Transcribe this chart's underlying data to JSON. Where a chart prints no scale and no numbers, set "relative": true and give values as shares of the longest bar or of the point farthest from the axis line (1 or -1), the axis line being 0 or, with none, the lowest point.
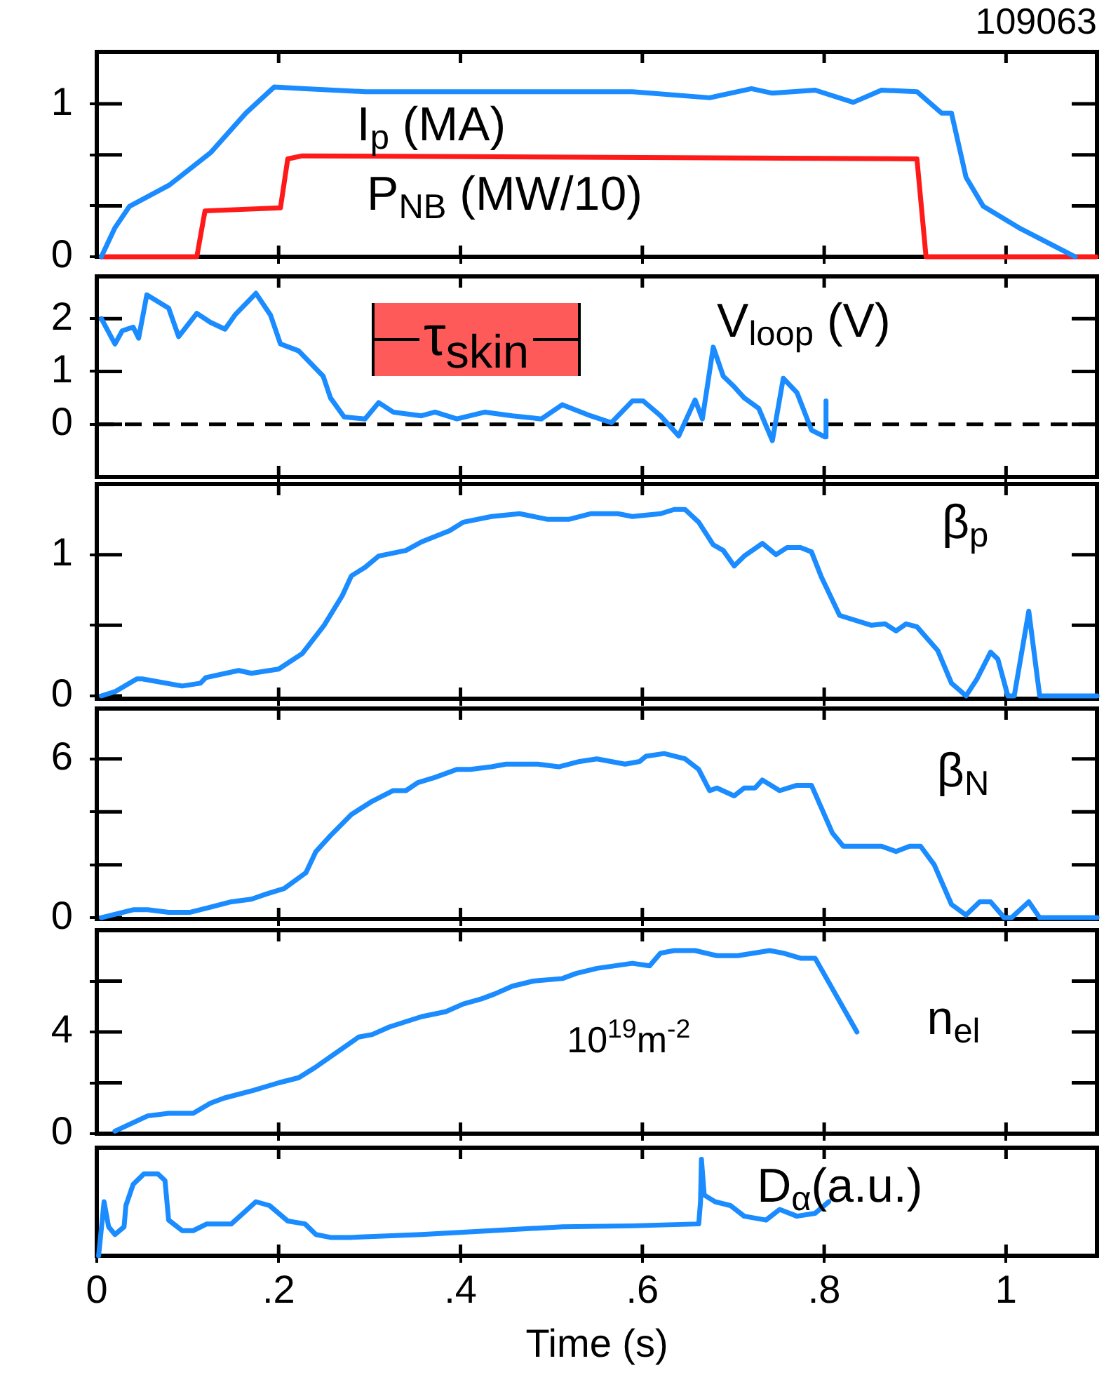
{
  "chart_data": [
    {
      "type": "line",
      "annotations": [
        "109063"
      ],
      "xlim": [
        0,
        1.1
      ],
      "xticks": [
        {
          "value": 0.2,
          "label": null
        },
        {
          "value": 0.4,
          "label": null
        },
        {
          "value": 0.6,
          "label": null
        },
        {
          "value": 0.8,
          "label": null
        },
        {
          "value": 1,
          "label": null
        }
      ],
      "ylim": [
        0,
        1.34
      ],
      "yticks": [
        0,
        {
          "value": 0.333,
          "label": null
        },
        {
          "value": 0.667,
          "label": null
        },
        1
      ],
      "tick_labels": "y",
      "marker": "none",
      "line_style": "solid",
      "series": [
        {
          "name": "I$_{p}$ (MA)",
          "color": "#1a8cff",
          "x": [
            0.005,
            0.02,
            0.036,
            0.08,
            0.125,
            0.164,
            0.195,
            0.226,
            0.295,
            0.589,
            0.674,
            0.72,
            0.743,
            0.79,
            0.832,
            0.863,
            0.902,
            0.929,
            0.94,
            0.956,
            0.975,
            1.014,
            1.076
          ],
          "values": [
            0,
            0.19,
            0.33,
            0.47,
            0.68,
            0.94,
            1.11,
            1.1,
            1.08,
            1.08,
            1.04,
            1.1,
            1.07,
            1.09,
            1.01,
            1.09,
            1.08,
            0.94,
            0.94,
            0.52,
            0.33,
            0.19,
            0
          ]
        },
        {
          "name": "P$_{NB}$ (MW/10)",
          "color": "#ff1a1a",
          "x": [
            0.005,
            0.11,
            0.119,
            0.202,
            0.21,
            0.226,
            0.902,
            0.912,
            1.099
          ],
          "values": [
            0,
            0,
            0.3,
            0.32,
            0.64,
            0.66,
            0.64,
            0,
            0
          ]
        }
      ]
    },
    {
      "type": "line",
      "annotations": [
        "τ$_{skin}$"
      ],
      "xlim": [
        0,
        1.1
      ],
      "xticks": [
        {
          "value": 0.2,
          "label": null
        },
        {
          "value": 0.4,
          "label": null
        },
        {
          "value": 0.6,
          "label": null
        },
        {
          "value": 0.8,
          "label": null
        },
        {
          "value": 1,
          "label": null
        }
      ],
      "ylim": [
        -1,
        2.8
      ],
      "yticks": [
        0,
        1,
        2
      ],
      "tick_labels": "y",
      "marker": "none",
      "line_style": "solid",
      "ref_lines": [
        {
          "axis": "y",
          "value": 0,
          "color": "#000000",
          "line_style": "dashed"
        }
      ],
      "series": [
        {
          "name": "V$_{loop}$ (V)",
          "color": "#1a8cff",
          "x": [
            0.005,
            0.02,
            0.028,
            0.04,
            0.046,
            0.055,
            0.079,
            0.09,
            0.11,
            0.125,
            0.141,
            0.152,
            0.175,
            0.191,
            0.202,
            0.222,
            0.249,
            0.257,
            0.272,
            0.295,
            0.31,
            0.326,
            0.357,
            0.372,
            0.396,
            0.427,
            0.457,
            0.489,
            0.512,
            0.543,
            0.566,
            0.589,
            0.601,
            0.62,
            0.64,
            0.658,
            0.666,
            0.678,
            0.689,
            0.701,
            0.712,
            0.728,
            0.743,
            0.755,
            0.77,
            0.786,
            0.801,
            0.802
          ],
          "values": [
            2.0,
            1.52,
            1.77,
            1.84,
            1.63,
            2.45,
            2.2,
            1.66,
            2.1,
            1.93,
            1.8,
            2.07,
            2.48,
            2.07,
            1.52,
            1.39,
            0.91,
            0.5,
            0.14,
            0.1,
            0.41,
            0.23,
            0.16,
            0.23,
            0.1,
            0.23,
            0.16,
            0.1,
            0.37,
            0.16,
            0.03,
            0.44,
            0.44,
            0.16,
            -0.22,
            0.46,
            0.1,
            1.46,
            0.91,
            0.71,
            0.5,
            0.3,
            -0.31,
            0.87,
            0.6,
            -0.11,
            -0.24,
            0.44
          ]
        }
      ]
    },
    {
      "type": "line",
      "xlim": [
        0,
        1.1
      ],
      "xticks": [
        {
          "value": 0.2,
          "label": null
        },
        {
          "value": 0.4,
          "label": null
        },
        {
          "value": 0.6,
          "label": null
        },
        {
          "value": 0.8,
          "label": null
        },
        {
          "value": 1,
          "label": null
        }
      ],
      "ylim": [
        -0.02,
        1.5
      ],
      "yticks": [
        0,
        {
          "value": 0.5,
          "label": null
        },
        1
      ],
      "tick_labels": "y",
      "marker": "none",
      "line_style": "solid",
      "series": [
        {
          "name": "β$_{p}$",
          "color": "#1a8cff",
          "x": [
            0.005,
            0.02,
            0.044,
            0.05,
            0.094,
            0.114,
            0.12,
            0.156,
            0.17,
            0.2,
            0.226,
            0.25,
            0.27,
            0.28,
            0.295,
            0.31,
            0.34,
            0.357,
            0.388,
            0.403,
            0.434,
            0.465,
            0.496,
            0.519,
            0.543,
            0.573,
            0.589,
            0.62,
            0.635,
            0.647,
            0.662,
            0.678,
            0.689,
            0.701,
            0.712,
            0.732,
            0.747,
            0.759,
            0.774,
            0.786,
            0.797,
            0.817,
            0.852,
            0.867,
            0.879,
            0.89,
            0.902,
            0.925,
            0.94,
            0.956,
            0.968,
            0.983,
            0.991,
            1.002,
            1.009,
            1.025,
            1.037,
            1.1
          ],
          "values": [
            0,
            0.03,
            0.12,
            0.12,
            0.07,
            0.09,
            0.13,
            0.18,
            0.16,
            0.19,
            0.3,
            0.5,
            0.71,
            0.85,
            0.91,
            0.99,
            1.03,
            1.09,
            1.17,
            1.23,
            1.27,
            1.29,
            1.25,
            1.25,
            1.29,
            1.29,
            1.27,
            1.29,
            1.32,
            1.32,
            1.23,
            1.07,
            1.03,
            0.92,
            0.99,
            1.08,
            1.0,
            1.05,
            1.05,
            1.02,
            0.84,
            0.57,
            0.5,
            0.51,
            0.46,
            0.51,
            0.49,
            0.32,
            0.09,
            0,
            0.12,
            0.31,
            0.26,
            0,
            0,
            0.6,
            0,
            0
          ]
        }
      ]
    },
    {
      "type": "line",
      "xlim": [
        0,
        1.1
      ],
      "xticks": [
        {
          "value": 0.2,
          "label": null
        },
        {
          "value": 0.4,
          "label": null
        },
        {
          "value": 0.6,
          "label": null
        },
        {
          "value": 0.8,
          "label": null
        },
        {
          "value": 1,
          "label": null
        }
      ],
      "ylim": [
        -0.05,
        7.9
      ],
      "yticks": [
        0,
        {
          "value": 2,
          "label": null
        },
        {
          "value": 4,
          "label": null
        },
        6
      ],
      "tick_labels": "y",
      "marker": "none",
      "line_style": "solid",
      "series": [
        {
          "name": "β$_{N}$",
          "color": "#1a8cff",
          "x": [
            0.005,
            0.04,
            0.056,
            0.079,
            0.102,
            0.125,
            0.148,
            0.17,
            0.187,
            0.206,
            0.23,
            0.241,
            0.257,
            0.28,
            0.303,
            0.326,
            0.34,
            0.353,
            0.372,
            0.396,
            0.411,
            0.434,
            0.45,
            0.485,
            0.508,
            0.531,
            0.55,
            0.581,
            0.597,
            0.604,
            0.624,
            0.647,
            0.662,
            0.674,
            0.682,
            0.701,
            0.712,
            0.724,
            0.732,
            0.751,
            0.77,
            0.786,
            0.809,
            0.821,
            0.863,
            0.879,
            0.894,
            0.906,
            0.921,
            0.94,
            0.956,
            0.971,
            0.983,
            0.998,
            1.006,
            1.025,
            1.037,
            1.1
          ],
          "values": [
            0,
            0.3,
            0.3,
            0.2,
            0.2,
            0.4,
            0.6,
            0.7,
            0.9,
            1.1,
            1.7,
            2.5,
            3.1,
            3.9,
            4.4,
            4.8,
            4.8,
            5.1,
            5.3,
            5.6,
            5.6,
            5.7,
            5.8,
            5.8,
            5.7,
            5.9,
            6.0,
            5.8,
            5.9,
            6.1,
            6.2,
            6.0,
            5.6,
            4.8,
            4.9,
            4.6,
            4.9,
            4.9,
            5.2,
            4.8,
            5.0,
            5.0,
            3.2,
            2.7,
            2.7,
            2.5,
            2.7,
            2.7,
            2.0,
            0.5,
            0.1,
            0.6,
            0.6,
            0,
            0,
            0.6,
            0,
            0
          ]
        }
      ]
    },
    {
      "type": "line",
      "annotations": [
        "10$^{19}$m$^{-2}$"
      ],
      "xlim": [
        0,
        1.1
      ],
      "xticks": [
        {
          "value": 0.2,
          "label": null
        },
        {
          "value": 0.4,
          "label": null
        },
        {
          "value": 0.6,
          "label": null
        },
        {
          "value": 0.8,
          "label": null
        },
        {
          "value": 1,
          "label": null
        }
      ],
      "ylim": [
        0,
        8
      ],
      "yticks": [
        0,
        {
          "value": 2,
          "label": null
        },
        4,
        {
          "value": 6,
          "label": null
        }
      ],
      "tick_labels": "y",
      "marker": "none",
      "line_style": "solid",
      "series": [
        {
          "name": "n$_{el}$",
          "color": "#1a8cff",
          "x": [
            0.02,
            0.056,
            0.079,
            0.106,
            0.125,
            0.14,
            0.172,
            0.2,
            0.222,
            0.24,
            0.26,
            0.288,
            0.303,
            0.322,
            0.357,
            0.384,
            0.403,
            0.423,
            0.438,
            0.457,
            0.48,
            0.512,
            0.527,
            0.55,
            0.589,
            0.608,
            0.62,
            0.635,
            0.658,
            0.682,
            0.705,
            0.74,
            0.755,
            0.774,
            0.79,
            0.836
          ],
          "values": [
            0.1,
            0.7,
            0.8,
            0.8,
            1.2,
            1.4,
            1.7,
            2.0,
            2.2,
            2.6,
            3.1,
            3.8,
            3.9,
            4.2,
            4.6,
            4.8,
            5.1,
            5.3,
            5.5,
            5.8,
            6.0,
            6.1,
            6.3,
            6.5,
            6.7,
            6.6,
            7.1,
            7.2,
            7.2,
            7.0,
            7.0,
            7.2,
            7.1,
            6.9,
            6.9,
            4.0
          ]
        }
      ]
    },
    {
      "type": "line",
      "relative": true,
      "xlabel": "Time (s)",
      "xlim": [
        0,
        1.1
      ],
      "xticks": [
        0,
        {
          "value": 0.2,
          "label": ".2"
        },
        {
          "value": 0.4,
          "label": ".4"
        },
        {
          "value": 0.6,
          "label": ".6"
        },
        {
          "value": 0.8,
          "label": ".8"
        },
        1
      ],
      "tick_labels": "x",
      "marker": "none",
      "line_style": "solid",
      "series": [
        {
          "name": "D$_{α}$(a.u.)",
          "color": "#1a8cff",
          "x": [
            0.002,
            0.008,
            0.013,
            0.02,
            0.03,
            0.032,
            0.04,
            0.052,
            0.067,
            0.075,
            0.079,
            0.094,
            0.106,
            0.121,
            0.148,
            0.175,
            0.19,
            0.21,
            0.229,
            0.241,
            0.257,
            0.28,
            0.357,
            0.434,
            0.512,
            0.589,
            0.662,
            0.664,
            0.665,
            0.668,
            0.68,
            0.697,
            0.712,
            0.736,
            0.751,
            0.77,
            0.79,
            0.805
          ],
          "values": [
            0,
            0.56,
            0.3,
            0.22,
            0.3,
            0.52,
            0.74,
            0.85,
            0.85,
            0.78,
            0.37,
            0.26,
            0.26,
            0.33,
            0.33,
            0.56,
            0.52,
            0.36,
            0.33,
            0.22,
            0.19,
            0.19,
            0.22,
            0.26,
            0.3,
            0.31,
            0.33,
            0.56,
            1.0,
            0.63,
            0.56,
            0.52,
            0.41,
            0.37,
            0.48,
            0.41,
            0.44,
            0.56
          ]
        }
      ]
    }
  ]
}
